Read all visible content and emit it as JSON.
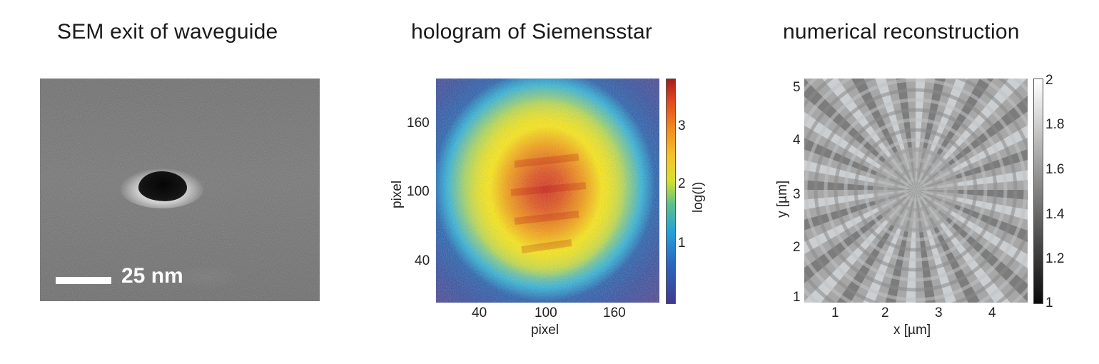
{
  "panels": [
    {
      "title": "SEM exit of waveguide",
      "scalebar_label": "25 nm"
    },
    {
      "title": "hologram of Siemensstar",
      "x_ticks": [
        "40",
        "100",
        "160"
      ],
      "y_ticks": [
        "160",
        "100",
        "40"
      ],
      "xlabel": "pixel",
      "ylabel": "pixel",
      "colorbar_ticks": [
        "3",
        "2",
        "1"
      ],
      "colorbar_label": "log(I)"
    },
    {
      "title": "numerical reconstruction",
      "x_ticks": [
        "1",
        "2",
        "3",
        "4"
      ],
      "y_ticks": [
        "5",
        "4",
        "3",
        "2",
        "1"
      ],
      "xlabel": "x [µm]",
      "ylabel": "y [µm]",
      "colorbar_ticks": [
        "2",
        "1.8",
        "1.6",
        "1.4",
        "1.2",
        "1"
      ]
    }
  ],
  "colors": {
    "colormap_hot": "#d5301f",
    "colormap_cold": "#3e3a8f",
    "gray_dark": "#0a0a0a",
    "gray_light": "#ffffff"
  }
}
